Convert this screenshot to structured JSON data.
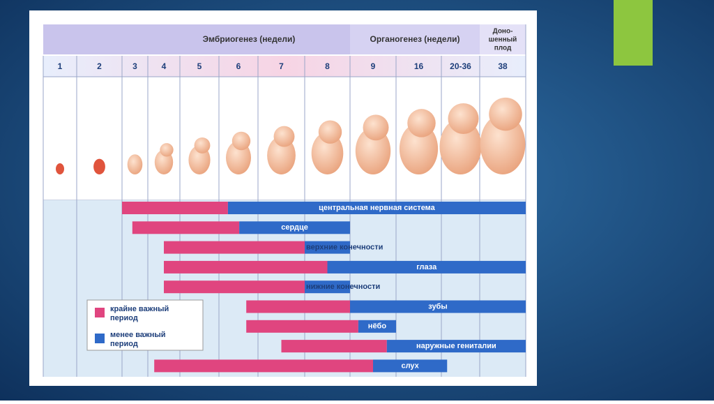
{
  "header": {
    "groups": [
      "Эмбриогенез (недели)",
      "Органогенез (недели)"
    ],
    "term": [
      "Доно-",
      "шенный",
      "плод"
    ]
  },
  "weeks": [
    "1",
    "2",
    "3",
    "4",
    "5",
    "6",
    "7",
    "8",
    "9",
    "16",
    "20-36",
    "38"
  ],
  "rows": [
    {
      "label": "центральная нервная система",
      "critical": [
        2,
        5.23
      ],
      "less": [
        5.23,
        12
      ]
    },
    {
      "label": "сердце",
      "critical": [
        2.4,
        5.52
      ],
      "less": [
        5.52,
        8
      ]
    },
    {
      "label": "верхние конечности",
      "critical": [
        3.5,
        7
      ],
      "less": [
        7,
        8
      ]
    },
    {
      "label": "глаза",
      "critical": [
        3.5,
        7.5
      ],
      "less": [
        7.5,
        12
      ]
    },
    {
      "label": "нижние конечности",
      "critical": [
        3.5,
        7
      ],
      "less": [
        7,
        8
      ]
    },
    {
      "label": "зубы",
      "critical": [
        5.7,
        8
      ],
      "less": [
        8,
        12
      ]
    },
    {
      "label": "нёбо",
      "critical": [
        5.7,
        8.18
      ],
      "less": [
        8.18,
        9
      ]
    },
    {
      "label": "наружные гениталии",
      "critical": [
        6.5,
        8.8
      ],
      "less": [
        8.8,
        12
      ]
    },
    {
      "label": "слух",
      "critical": [
        3.2,
        8.5
      ],
      "less": [
        8.5,
        10.15
      ]
    }
  ],
  "legend": {
    "critical": [
      "крайне важный",
      "период"
    ],
    "less": [
      "менее важный",
      "период"
    ]
  }
}
